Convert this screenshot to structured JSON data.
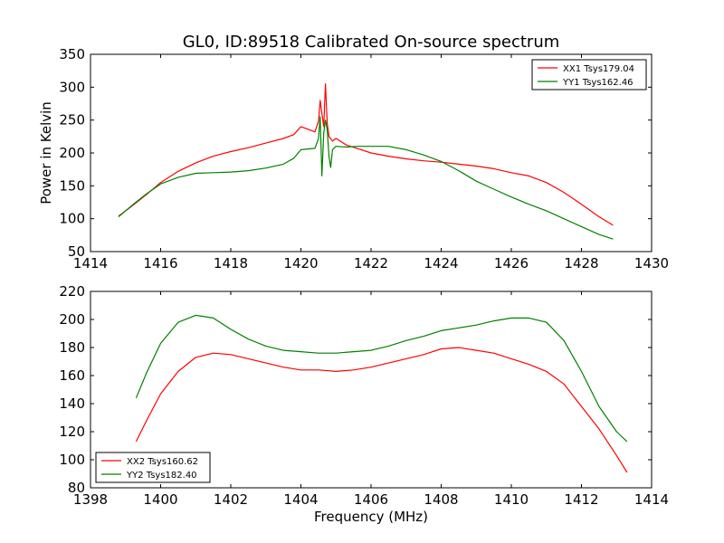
{
  "colors": {
    "red": "#ff0000",
    "green": "#008000"
  },
  "chart_data": [
    {
      "type": "line",
      "title": "GL0, ID:89518 Calibrated On-source spectrum",
      "xlabel": "",
      "ylabel": "Power in Kelvin",
      "xlim": [
        1414,
        1430
      ],
      "ylim": [
        50,
        350
      ],
      "xticks": [
        1414,
        1416,
        1418,
        1420,
        1422,
        1424,
        1426,
        1428,
        1430
      ],
      "yticks": [
        50,
        100,
        150,
        200,
        250,
        300,
        350
      ],
      "legend_position": "top-right",
      "series": [
        {
          "name": "XX1 Tsys179.04",
          "color": "#ff0000",
          "x": [
            1414.8,
            1415.2,
            1415.6,
            1416.0,
            1416.5,
            1417.0,
            1417.5,
            1418.0,
            1418.5,
            1419.0,
            1419.5,
            1419.8,
            1420.0,
            1420.2,
            1420.4,
            1420.5,
            1420.55,
            1420.6,
            1420.65,
            1420.7,
            1420.75,
            1420.8,
            1420.9,
            1421.0,
            1421.3,
            1421.6,
            1422.0,
            1422.5,
            1423.0,
            1423.5,
            1424.0,
            1424.5,
            1425.0,
            1425.5,
            1426.0,
            1426.5,
            1427.0,
            1427.5,
            1428.0,
            1428.5,
            1428.9
          ],
          "y": [
            104,
            120,
            137,
            155,
            172,
            185,
            195,
            202,
            208,
            215,
            222,
            228,
            240,
            236,
            232,
            248,
            280,
            260,
            240,
            305,
            245,
            225,
            218,
            222,
            212,
            207,
            200,
            195,
            191,
            188,
            186,
            183,
            180,
            176,
            170,
            165,
            155,
            140,
            122,
            103,
            90
          ]
        },
        {
          "name": "YY1 Tsys162.46",
          "color": "#008000",
          "x": [
            1414.8,
            1415.2,
            1415.6,
            1416.0,
            1416.5,
            1417.0,
            1417.5,
            1418.0,
            1418.5,
            1419.0,
            1419.5,
            1419.8,
            1420.0,
            1420.2,
            1420.4,
            1420.5,
            1420.55,
            1420.6,
            1420.65,
            1420.7,
            1420.75,
            1420.8,
            1420.85,
            1420.9,
            1421.0,
            1421.3,
            1421.6,
            1422.0,
            1422.5,
            1423.0,
            1423.5,
            1424.0,
            1424.5,
            1425.0,
            1425.5,
            1426.0,
            1426.5,
            1427.0,
            1427.5,
            1428.0,
            1428.5,
            1428.9
          ],
          "y": [
            103,
            121,
            138,
            153,
            163,
            169,
            170,
            171,
            173,
            177,
            183,
            192,
            205,
            206,
            207,
            222,
            255,
            165,
            230,
            250,
            235,
            195,
            178,
            205,
            210,
            209,
            210,
            210,
            210,
            205,
            197,
            187,
            173,
            157,
            145,
            133,
            122,
            112,
            100,
            88,
            76,
            69
          ]
        }
      ]
    },
    {
      "type": "line",
      "title": "",
      "xlabel": "Frequency (MHz)",
      "ylabel": "",
      "xlim": [
        1398,
        1414
      ],
      "ylim": [
        80,
        220
      ],
      "xticks": [
        1398,
        1400,
        1402,
        1404,
        1406,
        1408,
        1410,
        1412,
        1414
      ],
      "yticks": [
        80,
        100,
        120,
        140,
        160,
        180,
        200,
        220
      ],
      "legend_position": "bottom-left",
      "series": [
        {
          "name": "XX2 Tsys160.62",
          "color": "#ff0000",
          "x": [
            1399.3,
            1399.6,
            1400.0,
            1400.5,
            1401.0,
            1401.5,
            1402.0,
            1402.5,
            1403.0,
            1403.5,
            1404.0,
            1404.5,
            1405.0,
            1405.5,
            1406.0,
            1406.5,
            1407.0,
            1407.5,
            1408.0,
            1408.5,
            1409.0,
            1409.5,
            1410.0,
            1410.5,
            1411.0,
            1411.5,
            1412.0,
            1412.5,
            1413.0,
            1413.3
          ],
          "y": [
            113,
            128,
            147,
            163,
            173,
            176,
            175,
            172,
            169,
            166,
            164,
            164,
            163,
            164,
            166,
            169,
            172,
            175,
            179,
            180,
            178,
            176,
            172,
            168,
            163,
            154,
            138,
            122,
            103,
            91
          ]
        },
        {
          "name": "YY2 Tsys182.40",
          "color": "#008000",
          "x": [
            1399.3,
            1399.6,
            1400.0,
            1400.5,
            1401.0,
            1401.5,
            1402.0,
            1402.5,
            1403.0,
            1403.5,
            1404.0,
            1404.5,
            1405.0,
            1405.5,
            1406.0,
            1406.5,
            1407.0,
            1407.5,
            1408.0,
            1408.5,
            1409.0,
            1409.5,
            1410.0,
            1410.5,
            1411.0,
            1411.5,
            1412.0,
            1412.5,
            1413.0,
            1413.3
          ],
          "y": [
            144,
            162,
            183,
            198,
            203,
            201,
            193,
            186,
            181,
            178,
            177,
            176,
            176,
            177,
            178,
            181,
            185,
            188,
            192,
            194,
            196,
            199,
            201,
            201,
            198,
            185,
            163,
            138,
            120,
            113
          ]
        }
      ]
    }
  ]
}
